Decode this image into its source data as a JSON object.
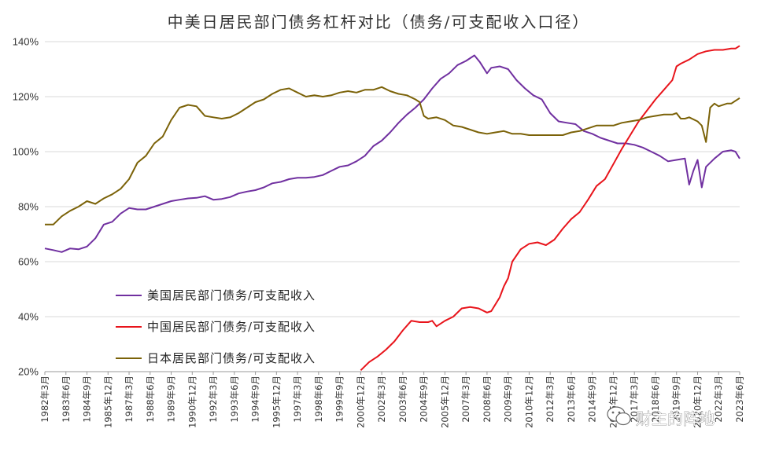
{
  "chart_data": {
    "type": "line",
    "title": "中美日居民部门债务杠杆对比（债务/可支配收入口径）",
    "xlabel": "",
    "ylabel": "",
    "ylim": [
      20,
      140
    ],
    "yticks": [
      "20%",
      "40%",
      "60%",
      "80%",
      "100%",
      "120%",
      "140%"
    ],
    "ytick_values": [
      20,
      40,
      60,
      80,
      100,
      120,
      140
    ],
    "x_start": "1982-03",
    "x_end": "2023-06",
    "x_ticks": [
      "1982年3月",
      "1983年6月",
      "1984年9月",
      "1985年12月",
      "1987年3月",
      "1988年6月",
      "1989年9月",
      "1990年12月",
      "1992年3月",
      "1993年6月",
      "1994年9月",
      "1995年12月",
      "1997年3月",
      "1998年6月",
      "1999年9月",
      "2000年12月",
      "2002年3月",
      "2003年6月",
      "2004年9月",
      "2005年12月",
      "2007年3月",
      "2008年6月",
      "2009年9月",
      "2010年12月",
      "2012年3月",
      "2013年6月",
      "2014年9月",
      "2015年12月",
      "2017年3月",
      "2018年6月",
      "2019年9月",
      "2020年12月",
      "2022年3月",
      "2023年6月"
    ],
    "grid": true,
    "legend_position": "center-left",
    "series": [
      {
        "name": "美国居民部门债务/可支配收入",
        "color": "#7030a0",
        "points": [
          [
            "1982-03",
            64.8
          ],
          [
            "1982-09",
            64.2
          ],
          [
            "1983-03",
            63.5
          ],
          [
            "1983-09",
            64.8
          ],
          [
            "1984-03",
            64.5
          ],
          [
            "1984-09",
            65.5
          ],
          [
            "1985-03",
            68.5
          ],
          [
            "1985-09",
            73.5
          ],
          [
            "1986-03",
            74.5
          ],
          [
            "1986-09",
            77.5
          ],
          [
            "1987-03",
            79.5
          ],
          [
            "1987-09",
            79
          ],
          [
            "1988-03",
            79
          ],
          [
            "1988-09",
            80
          ],
          [
            "1989-03",
            81
          ],
          [
            "1989-09",
            82
          ],
          [
            "1990-03",
            82.5
          ],
          [
            "1990-09",
            83
          ],
          [
            "1991-03",
            83.2
          ],
          [
            "1991-09",
            83.8
          ],
          [
            "1992-03",
            82.5
          ],
          [
            "1992-09",
            82.8
          ],
          [
            "1993-03",
            83.5
          ],
          [
            "1993-09",
            84.8
          ],
          [
            "1994-03",
            85.5
          ],
          [
            "1994-09",
            86
          ],
          [
            "1995-03",
            87
          ],
          [
            "1995-09",
            88.5
          ],
          [
            "1996-03",
            89
          ],
          [
            "1996-09",
            90
          ],
          [
            "1997-03",
            90.5
          ],
          [
            "1997-09",
            90.5
          ],
          [
            "1998-03",
            90.8
          ],
          [
            "1998-09",
            91.5
          ],
          [
            "1999-03",
            93
          ],
          [
            "1999-09",
            94.5
          ],
          [
            "2000-03",
            95
          ],
          [
            "2000-09",
            96.5
          ],
          [
            "2001-03",
            98.5
          ],
          [
            "2001-09",
            102
          ],
          [
            "2002-03",
            104
          ],
          [
            "2002-09",
            107
          ],
          [
            "2003-03",
            110.5
          ],
          [
            "2003-09",
            113.5
          ],
          [
            "2004-03",
            116
          ],
          [
            "2004-09",
            119
          ],
          [
            "2005-03",
            123
          ],
          [
            "2005-09",
            126.5
          ],
          [
            "2006-03",
            128.5
          ],
          [
            "2006-09",
            131.5
          ],
          [
            "2007-03",
            133
          ],
          [
            "2007-09",
            135
          ],
          [
            "2008-01",
            132.5
          ],
          [
            "2008-06",
            128.5
          ],
          [
            "2008-09",
            130.5
          ],
          [
            "2009-03",
            131
          ],
          [
            "2009-09",
            130
          ],
          [
            "2010-03",
            126
          ],
          [
            "2010-09",
            123
          ],
          [
            "2011-03",
            120.5
          ],
          [
            "2011-09",
            119
          ],
          [
            "2012-03",
            114
          ],
          [
            "2012-09",
            111
          ],
          [
            "2013-03",
            110.5
          ],
          [
            "2013-09",
            110
          ],
          [
            "2014-03",
            107.5
          ],
          [
            "2014-09",
            106.5
          ],
          [
            "2015-03",
            105
          ],
          [
            "2015-09",
            104
          ],
          [
            "2016-03",
            103
          ],
          [
            "2016-09",
            103
          ],
          [
            "2017-03",
            102.5
          ],
          [
            "2017-09",
            101.5
          ],
          [
            "2018-03",
            100
          ],
          [
            "2018-09",
            98.5
          ],
          [
            "2019-03",
            96.5
          ],
          [
            "2019-09",
            97
          ],
          [
            "2020-03",
            97.5
          ],
          [
            "2020-06",
            88
          ],
          [
            "2020-09",
            93
          ],
          [
            "2020-12",
            97
          ],
          [
            "2021-03",
            87
          ],
          [
            "2021-06",
            94.5
          ],
          [
            "2021-12",
            97.5
          ],
          [
            "2022-06",
            100
          ],
          [
            "2022-12",
            100.5
          ],
          [
            "2023-03",
            100
          ],
          [
            "2023-06",
            97.5
          ]
        ]
      },
      {
        "name": "中国居民部门债务/可支配收入",
        "color": "#e8141b",
        "points": [
          [
            "2000-12",
            20.5
          ],
          [
            "2001-06",
            23.5
          ],
          [
            "2001-12",
            25.5
          ],
          [
            "2002-06",
            28
          ],
          [
            "2002-12",
            31
          ],
          [
            "2003-06",
            35
          ],
          [
            "2003-12",
            38.5
          ],
          [
            "2004-06",
            38
          ],
          [
            "2004-12",
            38
          ],
          [
            "2005-03",
            38.5
          ],
          [
            "2005-06",
            36.5
          ],
          [
            "2005-12",
            38.5
          ],
          [
            "2006-06",
            40
          ],
          [
            "2006-12",
            43
          ],
          [
            "2007-06",
            43.5
          ],
          [
            "2007-12",
            43
          ],
          [
            "2008-06",
            41.5
          ],
          [
            "2008-09",
            42
          ],
          [
            "2009-03",
            47
          ],
          [
            "2009-06",
            51
          ],
          [
            "2009-09",
            54
          ],
          [
            "2009-12",
            60
          ],
          [
            "2010-06",
            64.5
          ],
          [
            "2010-12",
            66.5
          ],
          [
            "2011-06",
            67
          ],
          [
            "2011-12",
            66
          ],
          [
            "2012-06",
            68
          ],
          [
            "2012-12",
            72
          ],
          [
            "2013-06",
            75.5
          ],
          [
            "2013-12",
            78
          ],
          [
            "2014-06",
            82.5
          ],
          [
            "2014-12",
            87.5
          ],
          [
            "2015-06",
            90
          ],
          [
            "2015-12",
            95.5
          ],
          [
            "2016-06",
            101
          ],
          [
            "2016-12",
            106
          ],
          [
            "2017-06",
            111
          ],
          [
            "2017-12",
            115
          ],
          [
            "2018-06",
            119
          ],
          [
            "2018-12",
            122.5
          ],
          [
            "2019-06",
            126
          ],
          [
            "2019-09",
            131
          ],
          [
            "2019-12",
            132
          ],
          [
            "2020-06",
            133.5
          ],
          [
            "2020-12",
            135.5
          ],
          [
            "2021-06",
            136.5
          ],
          [
            "2021-12",
            137
          ],
          [
            "2022-06",
            137
          ],
          [
            "2022-12",
            137.5
          ],
          [
            "2023-03",
            137.5
          ],
          [
            "2023-06",
            138.5
          ]
        ]
      },
      {
        "name": "日本居民部门债务/可支配收入",
        "color": "#7b6208",
        "points": [
          [
            "1982-03",
            73.5
          ],
          [
            "1982-09",
            73.5
          ],
          [
            "1983-03",
            76.5
          ],
          [
            "1983-09",
            78.5
          ],
          [
            "1984-03",
            80
          ],
          [
            "1984-09",
            82
          ],
          [
            "1985-03",
            81
          ],
          [
            "1985-09",
            83
          ],
          [
            "1986-03",
            84.5
          ],
          [
            "1986-09",
            86.5
          ],
          [
            "1987-03",
            90
          ],
          [
            "1987-09",
            96
          ],
          [
            "1988-03",
            98.5
          ],
          [
            "1988-09",
            103
          ],
          [
            "1989-03",
            105.5
          ],
          [
            "1989-09",
            111.5
          ],
          [
            "1990-03",
            116
          ],
          [
            "1990-09",
            117
          ],
          [
            "1991-03",
            116.5
          ],
          [
            "1991-09",
            113
          ],
          [
            "1992-03",
            112.5
          ],
          [
            "1992-09",
            112
          ],
          [
            "1993-03",
            112.5
          ],
          [
            "1993-09",
            114
          ],
          [
            "1994-03",
            116
          ],
          [
            "1994-09",
            118
          ],
          [
            "1995-03",
            119
          ],
          [
            "1995-09",
            121
          ],
          [
            "1996-03",
            122.5
          ],
          [
            "1996-09",
            123
          ],
          [
            "1997-03",
            121.5
          ],
          [
            "1997-09",
            120
          ],
          [
            "1998-03",
            120.5
          ],
          [
            "1998-09",
            120
          ],
          [
            "1999-03",
            120.5
          ],
          [
            "1999-09",
            121.5
          ],
          [
            "2000-03",
            122
          ],
          [
            "2000-09",
            121.5
          ],
          [
            "2001-03",
            122.5
          ],
          [
            "2001-09",
            122.5
          ],
          [
            "2002-03",
            123.5
          ],
          [
            "2002-09",
            122
          ],
          [
            "2003-03",
            121
          ],
          [
            "2003-09",
            120.5
          ],
          [
            "2004-03",
            119
          ],
          [
            "2004-06",
            118
          ],
          [
            "2004-09",
            113
          ],
          [
            "2004-12",
            112
          ],
          [
            "2005-06",
            112.5
          ],
          [
            "2005-12",
            111.5
          ],
          [
            "2006-06",
            109.5
          ],
          [
            "2006-12",
            109
          ],
          [
            "2007-06",
            108
          ],
          [
            "2007-12",
            107
          ],
          [
            "2008-06",
            106.5
          ],
          [
            "2008-12",
            107
          ],
          [
            "2009-06",
            107.5
          ],
          [
            "2009-12",
            106.5
          ],
          [
            "2010-06",
            106.5
          ],
          [
            "2010-12",
            106
          ],
          [
            "2011-06",
            106
          ],
          [
            "2011-12",
            106
          ],
          [
            "2012-06",
            106
          ],
          [
            "2012-12",
            106
          ],
          [
            "2013-06",
            107
          ],
          [
            "2013-12",
            107.5
          ],
          [
            "2014-06",
            108.5
          ],
          [
            "2014-12",
            109.5
          ],
          [
            "2015-06",
            109.5
          ],
          [
            "2015-12",
            109.5
          ],
          [
            "2016-06",
            110.5
          ],
          [
            "2016-12",
            111
          ],
          [
            "2017-06",
            111.5
          ],
          [
            "2017-12",
            112.5
          ],
          [
            "2018-06",
            113
          ],
          [
            "2018-12",
            113.5
          ],
          [
            "2019-06",
            113.5
          ],
          [
            "2019-09",
            114
          ],
          [
            "2019-12",
            112
          ],
          [
            "2020-03",
            112
          ],
          [
            "2020-06",
            112.5
          ],
          [
            "2020-12",
            111
          ],
          [
            "2021-03",
            109.5
          ],
          [
            "2021-06",
            103.5
          ],
          [
            "2021-09",
            116
          ],
          [
            "2021-12",
            117.5
          ],
          [
            "2022-03",
            116.5
          ],
          [
            "2022-09",
            117.5
          ],
          [
            "2022-12",
            117.5
          ],
          [
            "2023-03",
            118.5
          ],
          [
            "2023-06",
            119.5
          ]
        ]
      }
    ]
  },
  "watermark": {
    "text": "财主的阵地"
  }
}
